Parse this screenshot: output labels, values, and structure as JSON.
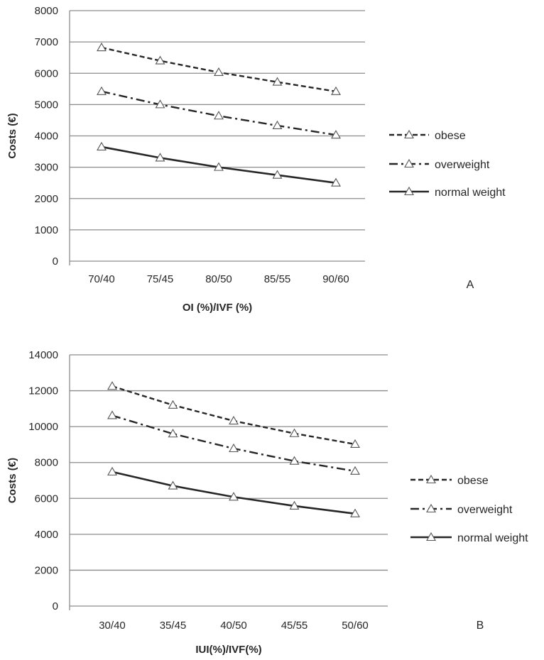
{
  "chart_data": [
    {
      "type": "line",
      "panel_label": "A",
      "xlabel": "OI (%)/IVF (%)",
      "ylabel": "Costs (€)",
      "categories": [
        "70/40",
        "75/45",
        "80/50",
        "85/55",
        "90/60"
      ],
      "ylim": [
        0,
        8000
      ],
      "yticks": [
        0,
        1000,
        2000,
        3000,
        4000,
        5000,
        6000,
        7000,
        8000
      ],
      "grid": "horizontal",
      "legend_position": "right",
      "marker": "open-triangle",
      "series": [
        {
          "name": "obese",
          "style": "dashed",
          "values": [
            6820,
            6400,
            6030,
            5720,
            5420
          ]
        },
        {
          "name": "overweight",
          "style": "dash-dot",
          "values": [
            5420,
            5000,
            4640,
            4330,
            4030
          ]
        },
        {
          "name": "normal weight",
          "style": "solid",
          "values": [
            3650,
            3300,
            3000,
            2750,
            2500
          ]
        }
      ]
    },
    {
      "type": "line",
      "panel_label": "B",
      "xlabel": "IUI(%)/IVF(%)",
      "ylabel": "Costs (€)",
      "categories": [
        "30/40",
        "35/45",
        "40/50",
        "45/55",
        "50/60"
      ],
      "ylim": [
        0,
        14000
      ],
      "yticks": [
        0,
        2000,
        4000,
        6000,
        8000,
        10000,
        12000,
        14000
      ],
      "grid": "horizontal",
      "legend_position": "right",
      "marker": "open-triangle",
      "series": [
        {
          "name": "obese",
          "style": "dashed",
          "values": [
            12250,
            11200,
            10320,
            9620,
            9020
          ]
        },
        {
          "name": "overweight",
          "style": "dash-dot",
          "values": [
            10620,
            9600,
            8780,
            8080,
            7520
          ]
        },
        {
          "name": "normal weight",
          "style": "solid",
          "values": [
            7480,
            6700,
            6080,
            5580,
            5150
          ]
        }
      ]
    }
  ],
  "colors": {
    "line": "#262626",
    "grid": "#8c8c8c",
    "marker_stroke": "#555555",
    "background": "#ffffff"
  }
}
